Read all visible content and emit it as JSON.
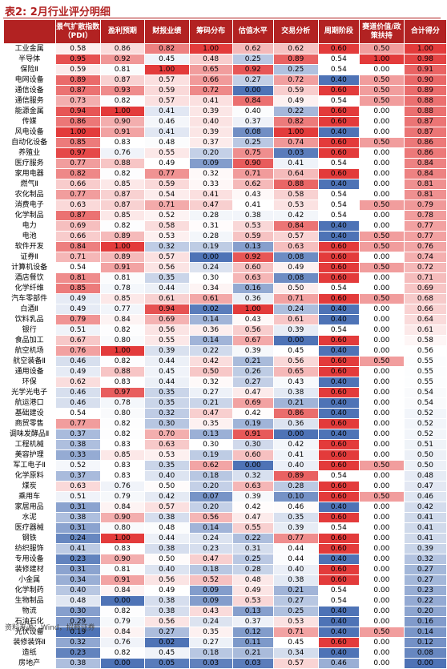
{
  "title": "表2: 2月行业评分明细",
  "source": "资料来源：Wind，招商证券",
  "headers": [
    "",
    "景气扩散指数（PDI）",
    "盈利预期",
    "财报业绩",
    "筹码分布",
    "估值水平",
    "交易分析",
    "周期阶段",
    "赛道价值/政策扶持",
    "合计得分"
  ],
  "rows": [
    [
      "工业金属",
      "0.58",
      "0.86",
      "0.82",
      "1.00",
      "0.62",
      "0.62",
      "0.60",
      "0.50",
      "1.00"
    ],
    [
      "半导体",
      "0.95",
      "0.92",
      "0.45",
      "0.48",
      "0.25",
      "0.89",
      "0.54",
      "1.00",
      "0.98"
    ],
    [
      "保险Ⅱ",
      "0.59",
      "0.81",
      "1.00",
      "0.65",
      "0.92",
      "0.25",
      "0.54",
      "0.00",
      "0.91"
    ],
    [
      "电网设备",
      "0.89",
      "0.87",
      "0.57",
      "0.66",
      "0.27",
      "0.72",
      "0.40",
      "0.50",
      "0.90"
    ],
    [
      "通信设备",
      "0.87",
      "0.93",
      "0.59",
      "0.72",
      "0.00",
      "0.59",
      "0.60",
      "0.50",
      "0.89"
    ],
    [
      "通信服务",
      "0.73",
      "0.82",
      "0.57",
      "0.41",
      "0.84",
      "0.49",
      "0.54",
      "0.50",
      "0.88"
    ],
    [
      "能源金属",
      "0.94",
      "1.00",
      "0.41",
      "0.39",
      "0.40",
      "0.22",
      "0.60",
      "0.00",
      "0.88"
    ],
    [
      "传媒",
      "0.86",
      "0.90",
      "0.46",
      "0.40",
      "0.37",
      "0.82",
      "0.60",
      "0.00",
      "0.87"
    ],
    [
      "风电设备",
      "1.00",
      "0.91",
      "0.41",
      "0.39",
      "0.08",
      "1.00",
      "0.40",
      "0.00",
      "0.87"
    ],
    [
      "自动化设备",
      "0.85",
      "0.83",
      "0.48",
      "0.37",
      "0.25",
      "0.74",
      "0.60",
      "0.50",
      "0.86"
    ],
    [
      "养殖业",
      "0.97",
      "0.76",
      "0.55",
      "0.20",
      "0.75",
      "0.03",
      "0.60",
      "0.00",
      "0.86"
    ],
    [
      "医疗服务",
      "0.77",
      "0.88",
      "0.49",
      "0.09",
      "0.90",
      "0.41",
      "0.54",
      "0.00",
      "0.84"
    ],
    [
      "家用电器",
      "0.82",
      "0.82",
      "0.77",
      "0.32",
      "0.71",
      "0.64",
      "0.60",
      "0.00",
      "0.84"
    ],
    [
      "燃气Ⅱ",
      "0.66",
      "0.85",
      "0.59",
      "0.33",
      "0.62",
      "0.88",
      "0.40",
      "0.00",
      "0.81"
    ],
    [
      "农化制品",
      "0.77",
      "0.87",
      "0.54",
      "0.41",
      "0.43",
      "0.58",
      "0.54",
      "0.00",
      "0.81"
    ],
    [
      "消费电子",
      "0.63",
      "0.87",
      "0.71",
      "0.47",
      "0.41",
      "0.53",
      "0.54",
      "0.50",
      "0.79"
    ],
    [
      "化学制品",
      "0.87",
      "0.85",
      "0.52",
      "0.28",
      "0.38",
      "0.42",
      "0.54",
      "0.00",
      "0.78"
    ],
    [
      "电力",
      "0.69",
      "0.82",
      "0.58",
      "0.31",
      "0.53",
      "0.84",
      "0.40",
      "0.00",
      "0.77"
    ],
    [
      "电池",
      "0.66",
      "0.89",
      "0.53",
      "0.28",
      "0.59",
      "0.57",
      "0.40",
      "0.50",
      "0.77"
    ],
    [
      "软件开发",
      "0.84",
      "1.00",
      "0.32",
      "0.19",
      "0.13",
      "0.63",
      "0.60",
      "0.50",
      "0.76"
    ],
    [
      "证券Ⅱ",
      "0.71",
      "0.89",
      "0.57",
      "0.00",
      "0.92",
      "0.08",
      "0.60",
      "0.00",
      "0.74"
    ],
    [
      "计算机设备",
      "0.54",
      "0.91",
      "0.56",
      "0.24",
      "0.60",
      "0.49",
      "0.60",
      "0.50",
      "0.72"
    ],
    [
      "酒店餐饮",
      "0.81",
      "0.81",
      "0.35",
      "0.30",
      "0.63",
      "0.08",
      "0.60",
      "0.00",
      "0.71"
    ],
    [
      "化学纤维",
      "0.85",
      "0.78",
      "0.44",
      "0.34",
      "0.16",
      "0.50",
      "0.54",
      "0.00",
      "0.69"
    ],
    [
      "汽车零部件",
      "0.49",
      "0.85",
      "0.61",
      "0.61",
      "0.36",
      "0.71",
      "0.60",
      "0.50",
      "0.68"
    ],
    [
      "白酒Ⅱ",
      "0.49",
      "0.77",
      "0.94",
      "0.02",
      "1.00",
      "0.24",
      "0.40",
      "0.00",
      "0.66"
    ],
    [
      "饮料乳品",
      "0.79",
      "0.84",
      "0.69",
      "0.14",
      "0.43",
      "0.61",
      "0.40",
      "0.00",
      "0.64"
    ],
    [
      "银行",
      "0.51",
      "0.82",
      "0.56",
      "0.36",
      "0.56",
      "0.39",
      "0.54",
      "0.00",
      "0.61"
    ],
    [
      "食品加工",
      "0.67",
      "0.80",
      "0.55",
      "0.14",
      "0.67",
      "0.00",
      "0.60",
      "0.00",
      "0.58"
    ],
    [
      "航空机场",
      "0.76",
      "1.00",
      "0.39",
      "0.22",
      "0.39",
      "0.45",
      "0.40",
      "0.00",
      "0.56"
    ],
    [
      "航空装备Ⅱ",
      "0.46",
      "0.82",
      "0.44",
      "0.42",
      "0.21",
      "0.56",
      "0.60",
      "0.50",
      "0.55"
    ],
    [
      "通用设备",
      "0.49",
      "0.88",
      "0.45",
      "0.50",
      "0.26",
      "0.65",
      "0.60",
      "0.00",
      "0.55"
    ],
    [
      "环保",
      "0.62",
      "0.83",
      "0.44",
      "0.32",
      "0.27",
      "0.43",
      "0.40",
      "0.00",
      "0.55"
    ],
    [
      "光学光电子",
      "0.46",
      "0.97",
      "0.35",
      "0.27",
      "0.47",
      "0.38",
      "0.60",
      "0.00",
      "0.54"
    ],
    [
      "航运港口",
      "0.46",
      "0.78",
      "0.35",
      "0.21",
      "0.69",
      "0.21",
      "0.40",
      "0.00",
      "0.54"
    ],
    [
      "基础建设",
      "0.54",
      "0.80",
      "0.32",
      "0.47",
      "0.42",
      "0.86",
      "0.40",
      "0.00",
      "0.52"
    ],
    [
      "商贸零售",
      "0.77",
      "0.82",
      "0.30",
      "0.35",
      "0.19",
      "0.36",
      "0.60",
      "0.00",
      "0.52"
    ],
    [
      "调味发酵品Ⅱ",
      "0.37",
      "0.82",
      "0.70",
      "0.13",
      "0.91",
      "0.00",
      "0.40",
      "0.00",
      "0.52"
    ],
    [
      "工程机械",
      "0.38",
      "0.83",
      "0.63",
      "0.30",
      "0.30",
      "0.42",
      "0.60",
      "0.00",
      "0.51"
    ],
    [
      "美容护理",
      "0.33",
      "0.85",
      "0.53",
      "0.19",
      "0.60",
      "0.41",
      "0.60",
      "0.00",
      "0.50"
    ],
    [
      "军工电子Ⅱ",
      "0.52",
      "0.83",
      "0.35",
      "0.62",
      "0.00",
      "0.40",
      "0.60",
      "0.50",
      "0.50"
    ],
    [
      "化学原料",
      "0.37",
      "0.83",
      "0.40",
      "0.18",
      "0.32",
      "0.89",
      "0.54",
      "0.00",
      "0.48"
    ],
    [
      "煤炭",
      "0.63",
      "0.76",
      "0.50",
      "0.20",
      "0.63",
      "0.28",
      "0.60",
      "0.00",
      "0.47"
    ],
    [
      "乘用车",
      "0.51",
      "0.79",
      "0.42",
      "0.07",
      "0.39",
      "0.10",
      "0.60",
      "0.50",
      "0.46"
    ],
    [
      "家居用品",
      "0.31",
      "0.84",
      "0.57",
      "0.20",
      "0.42",
      "0.46",
      "0.40",
      "0.00",
      "0.42"
    ],
    [
      "水泥",
      "0.38",
      "0.90",
      "0.38",
      "0.56",
      "0.47",
      "0.35",
      "0.60",
      "0.00",
      "0.41"
    ],
    [
      "医疗器械",
      "0.31",
      "0.80",
      "0.48",
      "0.14",
      "0.55",
      "0.39",
      "0.54",
      "0.00",
      "0.41"
    ],
    [
      "钢铁",
      "0.24",
      "1.00",
      "0.44",
      "0.24",
      "0.22",
      "0.77",
      "0.60",
      "0.00",
      "0.41"
    ],
    [
      "纺织服饰",
      "0.41",
      "0.83",
      "0.38",
      "0.23",
      "0.31",
      "0.44",
      "0.60",
      "0.00",
      "0.39"
    ],
    [
      "专用设备",
      "0.23",
      "0.90",
      "0.50",
      "0.47",
      "0.25",
      "0.44",
      "0.40",
      "0.00",
      "0.32"
    ],
    [
      "装修建材",
      "0.31",
      "0.81",
      "0.40",
      "0.18",
      "0.28",
      "0.40",
      "0.60",
      "0.00",
      "0.27"
    ],
    [
      "小金属",
      "0.34",
      "0.91",
      "0.56",
      "0.52",
      "0.48",
      "0.38",
      "0.60",
      "0.00",
      "0.27"
    ],
    [
      "化学制药",
      "0.40",
      "0.84",
      "0.49",
      "0.09",
      "0.49",
      "0.21",
      "0.54",
      "0.00",
      "0.23"
    ],
    [
      "生物制品",
      "0.48",
      "0.00",
      "0.38",
      "0.09",
      "0.53",
      "0.27",
      "0.54",
      "0.00",
      "0.22"
    ],
    [
      "物流",
      "0.30",
      "0.82",
      "0.38",
      "0.43",
      "0.13",
      "0.25",
      "0.40",
      "0.00",
      "0.20"
    ],
    [
      "石油石化",
      "0.29",
      "0.79",
      "0.56",
      "0.24",
      "0.37",
      "0.53",
      "0.40",
      "0.00",
      "0.16"
    ],
    [
      "光伏设备",
      "0.19",
      "0.84",
      "0.27",
      "0.35",
      "0.12",
      "0.71",
      "0.40",
      "0.50",
      "0.14"
    ],
    [
      "装修装饰Ⅱ",
      "0.32",
      "0.76",
      "0.02",
      "0.27",
      "0.11",
      "0.45",
      "0.60",
      "0.00",
      "0.12"
    ],
    [
      "造纸",
      "0.23",
      "0.82",
      "0.45",
      "0.18",
      "0.21",
      "0.34",
      "0.40",
      "0.00",
      "0.08"
    ],
    [
      "房地产",
      "0.38",
      "0.00",
      "0.05",
      "0.03",
      "0.03",
      "0.57",
      "0.46",
      "0.00",
      "0.00"
    ]
  ],
  "colors": {
    "title": "#b22222",
    "header_bg": "#b22222",
    "high": "#e33b3b",
    "mid": "#ffffff",
    "low": "#4e73b6"
  }
}
